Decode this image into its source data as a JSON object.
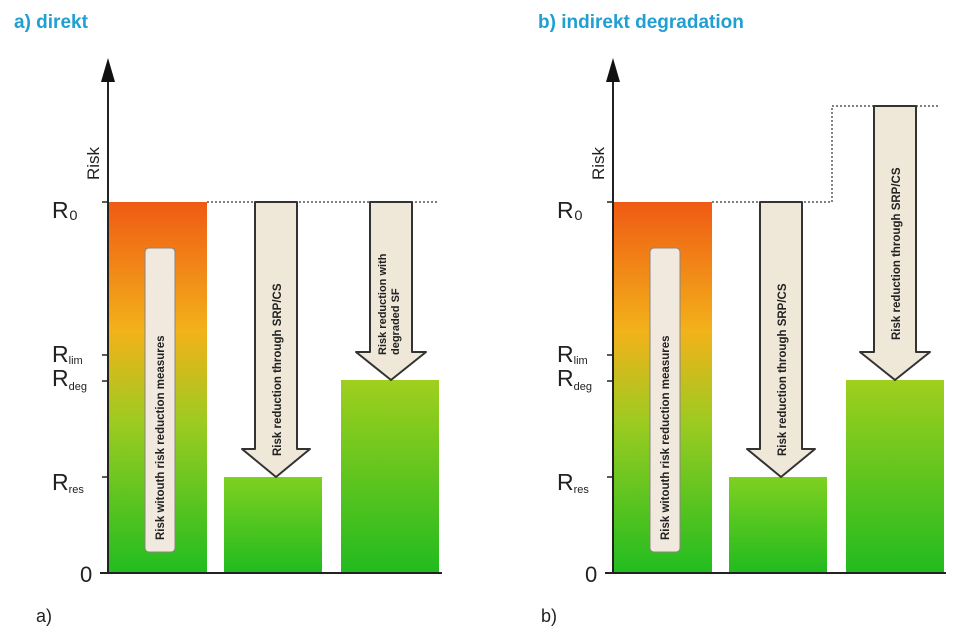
{
  "panels": [
    {
      "title": "a) direkt",
      "corner_label": "a)",
      "y_axis_label": "Risk",
      "levels": {
        "r0": "R₀",
        "rlim": "R",
        "rlim_sub": "lim",
        "rdeg": "R",
        "rdeg_sub": "deg",
        "rres": "R",
        "rres_sub": "res",
        "zero": "0"
      },
      "bar1_text": "Risk witouth risk reduction measures",
      "arrow1_text": "Risk reduction through SRP/CS",
      "arrow2_text_line1": "Risk reduction with",
      "arrow2_text_line2": "degraded SF"
    },
    {
      "title": "b) indirekt degradation",
      "corner_label": "b)",
      "y_axis_label": "Risk",
      "levels": {
        "r0": "R₀",
        "rlim": "R",
        "rlim_sub": "lim",
        "rdeg": "R",
        "rdeg_sub": "deg",
        "rres": "R",
        "rres_sub": "res",
        "zero": "0"
      },
      "bar1_text": "Risk witouth risk reduction measures",
      "arrow1_text": "Risk reduction through SRP/CS",
      "arrow2_text_line1": "Risk reduction through SRP/CS",
      "arrow2_text_line2": ""
    }
  ],
  "colors": {
    "title": "#1f9fd2",
    "bar_top": "#f05a14",
    "bar_mid": "#f2b21a",
    "bar_bottom": "#26c01e",
    "green_bar_top": "#8cd31e",
    "arrow_fill": "#efe7d8",
    "label_box": "#f1e9de"
  }
}
